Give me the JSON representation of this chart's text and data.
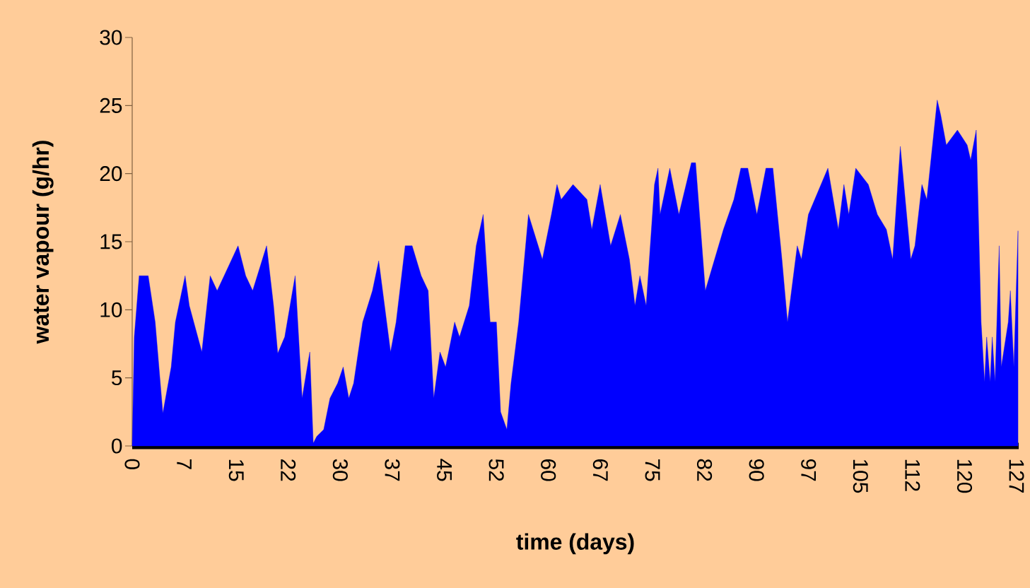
{
  "chart_data": {
    "type": "area",
    "xlabel": "time (days)",
    "ylabel": "water vapour (g/hr)",
    "color": "#0000ff",
    "x": [
      0,
      0.3,
      1.0,
      2.3,
      3.3,
      4.4,
      5.6,
      6.2,
      7.6,
      8.2,
      10.0,
      11.2,
      12.2,
      13.2,
      15.2,
      16.3,
      17.3,
      19.3,
      20.3,
      20.9,
      21.9,
      23.4,
      24.4,
      25.5,
      26.0,
      26.5,
      27.5,
      28.4,
      29.5,
      30.3,
      31.1,
      31.8,
      33.1,
      34.5,
      35.4,
      37.1,
      37.9,
      39.2,
      40.2,
      41.5,
      42.5,
      43.3,
      44.2,
      45.0,
      46.3,
      47.0,
      48.4,
      49.4,
      50.4,
      51.4,
      52.3,
      52.9,
      53.8,
      54.4,
      55.5,
      56.9,
      58.9,
      60.2,
      61.0,
      61.6,
      63.3,
      65.3,
      66.0,
      67.2,
      68.7,
      70.1,
      71.4,
      72.2,
      72.9,
      73.8,
      75.0,
      75.5,
      75.8,
      77.2,
      78.5,
      80.3,
      80.9,
      82.3,
      84.9,
      86.4,
      87.4,
      88.4,
      89.7,
      91.0,
      92.0,
      93.3,
      94.1,
      95.5,
      96.1,
      97.1,
      99.9,
      101.4,
      102.2,
      102.9,
      103.9,
      105.7,
      107.0,
      108.3,
      109.2,
      110.3,
      111.8,
      112.4,
      113.4,
      114.1,
      115.6,
      116.1,
      116.9,
      118.5,
      119.9,
      120.4,
      121.2,
      121.9,
      122.4,
      122.7,
      123.2,
      123.5,
      123.9,
      124.5,
      124.8,
      125.8,
      126.1,
      126.6,
      127.2
    ],
    "values": [
      0,
      8.0,
      12.5,
      12.5,
      9.1,
      2.4,
      5.8,
      9.1,
      12.5,
      10.3,
      6.9,
      12.5,
      11.4,
      12.5,
      14.7,
      12.5,
      11.4,
      14.7,
      10.3,
      6.8,
      8.0,
      12.5,
      3.5,
      6.9,
      0.2,
      0.7,
      1.2,
      3.5,
      4.6,
      5.8,
      3.5,
      4.6,
      9.1,
      11.4,
      13.6,
      6.9,
      9.1,
      14.7,
      14.7,
      12.5,
      11.4,
      3.5,
      6.9,
      5.8,
      9.1,
      8.0,
      10.3,
      14.7,
      17.0,
      9.1,
      9.1,
      2.5,
      1.2,
      4.6,
      9.1,
      17.0,
      13.7,
      17.0,
      19.2,
      18.1,
      19.2,
      18.1,
      15.9,
      19.2,
      14.7,
      17.0,
      13.7,
      10.3,
      12.5,
      10.3,
      19.2,
      20.4,
      17.0,
      20.4,
      17.0,
      20.8,
      20.8,
      11.4,
      15.9,
      18.1,
      20.4,
      20.4,
      17.0,
      20.4,
      20.4,
      13.7,
      9.1,
      14.7,
      13.7,
      17.0,
      20.4,
      15.9,
      19.2,
      17.0,
      20.4,
      19.2,
      17.0,
      15.9,
      13.7,
      22.0,
      13.7,
      14.7,
      19.2,
      18.1,
      25.4,
      24.3,
      22.1,
      23.2,
      22.1,
      21.0,
      23.2,
      9.1,
      4.7,
      8.0,
      4.7,
      8.0,
      4.7,
      14.7,
      5.8,
      9.1,
      11.4,
      5.8,
      15.8
    ],
    "xlim": [
      0,
      127.3
    ],
    "ylim": [
      0,
      30
    ],
    "xticks": [
      0,
      {
        "value": 7.47,
        "label": "7"
      },
      {
        "value": 14.94,
        "label": "15"
      },
      {
        "value": 22.41,
        "label": "22"
      },
      {
        "value": 29.88,
        "label": "30"
      },
      {
        "value": 37.35,
        "label": "37"
      },
      {
        "value": 44.82,
        "label": "45"
      },
      {
        "value": 52.29,
        "label": "52"
      },
      {
        "value": 59.76,
        "label": "60"
      },
      {
        "value": 67.24,
        "label": "67"
      },
      {
        "value": 74.71,
        "label": "75"
      },
      {
        "value": 82.18,
        "label": "82"
      },
      {
        "value": 89.65,
        "label": "90"
      },
      {
        "value": 97.12,
        "label": "97"
      },
      {
        "value": 104.59,
        "label": "105"
      },
      {
        "value": 112.06,
        "label": "112"
      },
      {
        "value": 119.53,
        "label": "120"
      },
      127
    ],
    "yticks": [
      0,
      5,
      10,
      15,
      20,
      25,
      30
    ]
  }
}
